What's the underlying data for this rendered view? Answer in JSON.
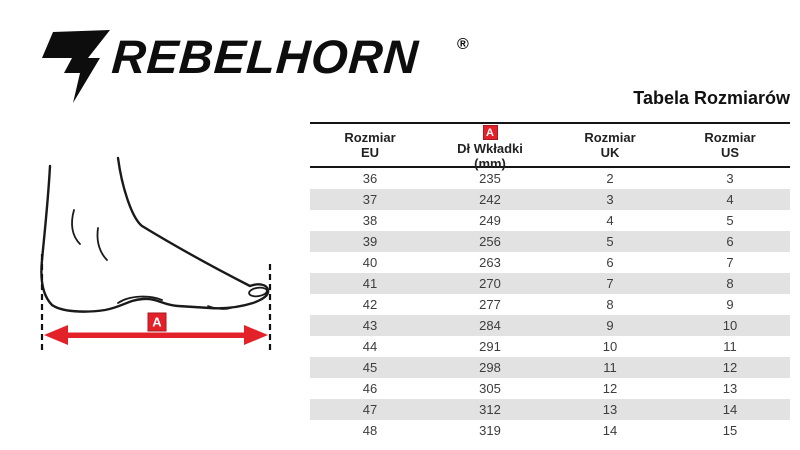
{
  "brand": {
    "wordmark": "REBELHORN",
    "registered_mark": "®",
    "logo_icon": "rebelhorn-r-bolt-icon"
  },
  "page_title": "Tabela Rozmiarów",
  "diagram": {
    "badge_label": "A"
  },
  "table": {
    "columns": [
      {
        "line1": "Rozmiar",
        "line2": "EU"
      },
      {
        "line1": "Dł Wkładki",
        "line2": "(mm)",
        "badge": "A"
      },
      {
        "line1": "Rozmiar",
        "line2": "UK"
      },
      {
        "line1": "Rozmiar",
        "line2": "US"
      }
    ],
    "rows": [
      [
        36,
        235,
        2,
        3
      ],
      [
        37,
        242,
        3,
        4
      ],
      [
        38,
        249,
        4,
        5
      ],
      [
        39,
        256,
        5,
        6
      ],
      [
        40,
        263,
        6,
        7
      ],
      [
        41,
        270,
        7,
        8
      ],
      [
        42,
        277,
        8,
        9
      ],
      [
        43,
        284,
        9,
        10
      ],
      [
        44,
        291,
        10,
        11
      ],
      [
        45,
        298,
        11,
        12
      ],
      [
        46,
        305,
        12,
        13
      ],
      [
        47,
        312,
        13,
        14
      ],
      [
        48,
        319,
        14,
        15
      ]
    ]
  },
  "colors": {
    "accent_red": "#e32128",
    "stripe_gray": "#e2e2e2",
    "ink": "#1a1a1a"
  }
}
